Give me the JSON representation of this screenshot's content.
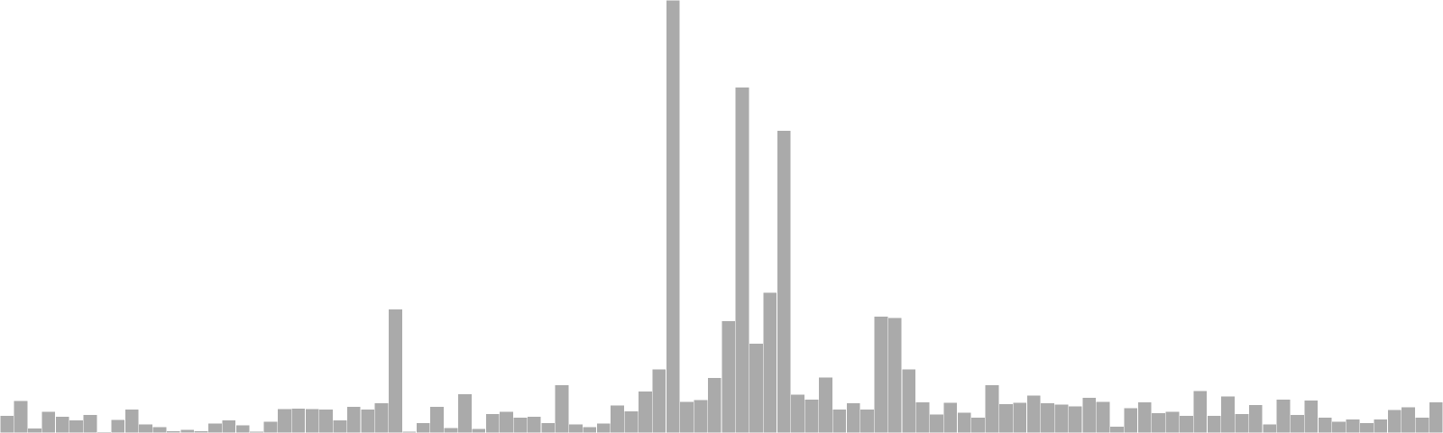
{
  "chart_data": {
    "type": "bar",
    "title": "",
    "xlabel": "",
    "ylabel": "",
    "axes_visible": false,
    "grid": false,
    "legend": "none",
    "ylim": [
      0,
      100
    ],
    "colors": {
      "background": "#ffffff",
      "bar_fill": "#aaaaaa",
      "bar_stroke": "#ffffff"
    },
    "values": [
      4.0,
      7.5,
      1.1,
      5.0,
      3.8,
      3.0,
      4.2,
      0.3,
      3.1,
      5.5,
      2.0,
      1.4,
      0.5,
      0.8,
      0.5,
      2.2,
      3.0,
      1.8,
      0.4,
      2.7,
      5.6,
      5.7,
      5.6,
      5.5,
      3.0,
      6.1,
      5.5,
      6.9,
      28.6,
      0.4,
      2.4,
      6.1,
      1.2,
      9.0,
      1.0,
      4.4,
      5.0,
      3.6,
      3.8,
      2.4,
      11.1,
      2.0,
      1.4,
      2.3,
      6.4,
      5.1,
      9.6,
      14.8,
      100.0,
      7.3,
      7.7,
      12.8,
      25.9,
      79.9,
      20.7,
      32.5,
      69.9,
      8.9,
      7.8,
      12.9,
      5.5,
      6.9,
      5.5,
      26.9,
      26.6,
      14.7,
      7.1,
      4.3,
      7.0,
      4.7,
      3.6,
      11.1,
      6.7,
      7.0,
      8.7,
      6.9,
      6.6,
      6.2,
      8.2,
      7.2,
      1.5,
      5.8,
      7.1,
      4.6,
      5.0,
      4.0,
      9.7,
      4.0,
      8.5,
      4.4,
      6.5,
      2.0,
      7.8,
      4.2,
      7.6,
      3.6,
      2.7,
      3.2,
      2.4,
      3.2,
      5.4,
      6.0,
      3.6,
      7.1
    ]
  }
}
